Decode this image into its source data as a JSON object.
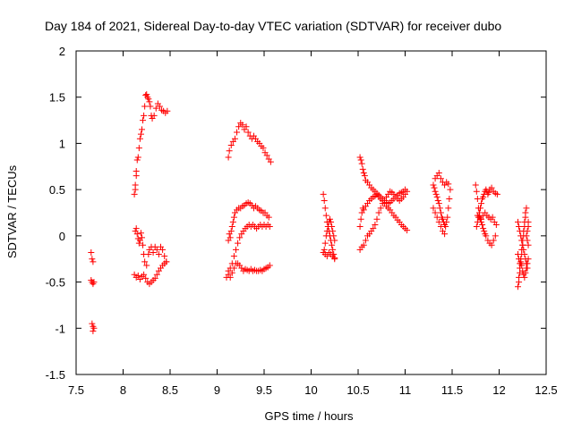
{
  "chart_data": {
    "type": "scatter",
    "title": "Day 184 of 2021, Sidereal Day-to-day VTEC variation (SDTVAR) for receiver dubo",
    "xlabel": "GPS time / hours",
    "ylabel": "SDTVAR / TECUs",
    "xlim": [
      7.5,
      12.5
    ],
    "ylim": [
      -1.5,
      2
    ],
    "xticks": [
      "7.5",
      "8",
      "8.5",
      "9",
      "9.5",
      "10",
      "10.5",
      "11",
      "11.5",
      "12",
      "12.5"
    ],
    "yticks": [
      "-1.5",
      "-1",
      "-0.5",
      "0",
      "0.5",
      "1",
      "1.5",
      "2"
    ],
    "grid": false,
    "marker": "+",
    "color": "#ff0000",
    "points": [
      [
        7.66,
        -0.18
      ],
      [
        7.67,
        -0.25
      ],
      [
        7.68,
        -0.28
      ],
      [
        7.66,
        -0.48
      ],
      [
        7.67,
        -0.5
      ],
      [
        7.68,
        -0.52
      ],
      [
        7.69,
        -0.5
      ],
      [
        7.67,
        -0.95
      ],
      [
        7.68,
        -0.98
      ],
      [
        7.69,
        -1.0
      ],
      [
        7.68,
        -1.03
      ],
      [
        8.12,
        0.45
      ],
      [
        8.13,
        0.5
      ],
      [
        8.13,
        0.55
      ],
      [
        8.14,
        0.65
      ],
      [
        8.14,
        0.7
      ],
      [
        8.15,
        0.82
      ],
      [
        8.16,
        0.85
      ],
      [
        8.17,
        0.95
      ],
      [
        8.18,
        1.05
      ],
      [
        8.19,
        1.1
      ],
      [
        8.2,
        1.15
      ],
      [
        8.21,
        1.25
      ],
      [
        8.22,
        1.3
      ],
      [
        8.23,
        1.4
      ],
      [
        8.24,
        1.52
      ],
      [
        8.25,
        1.53
      ],
      [
        8.26,
        1.5
      ],
      [
        8.27,
        1.48
      ],
      [
        8.28,
        1.45
      ],
      [
        8.29,
        1.4
      ],
      [
        8.3,
        1.3
      ],
      [
        8.31,
        1.27
      ],
      [
        8.33,
        1.3
      ],
      [
        8.35,
        1.38
      ],
      [
        8.37,
        1.43
      ],
      [
        8.39,
        1.4
      ],
      [
        8.41,
        1.36
      ],
      [
        8.43,
        1.35
      ],
      [
        8.45,
        1.33
      ],
      [
        8.47,
        1.35
      ],
      [
        8.13,
        0.05
      ],
      [
        8.14,
        0.08
      ],
      [
        8.15,
        0.02
      ],
      [
        8.16,
        -0.03
      ],
      [
        8.17,
        -0.08
      ],
      [
        8.18,
        -0.05
      ],
      [
        8.19,
        0.03
      ],
      [
        8.2,
        -0.02
      ],
      [
        8.21,
        -0.1
      ],
      [
        8.22,
        -0.2
      ],
      [
        8.23,
        -0.28
      ],
      [
        8.25,
        -0.32
      ],
      [
        8.27,
        -0.2
      ],
      [
        8.28,
        -0.15
      ],
      [
        8.3,
        -0.12
      ],
      [
        8.32,
        -0.18
      ],
      [
        8.34,
        -0.12
      ],
      [
        8.36,
        -0.15
      ],
      [
        8.38,
        -0.2
      ],
      [
        8.4,
        -0.12
      ],
      [
        8.42,
        -0.15
      ],
      [
        8.44,
        -0.22
      ],
      [
        8.46,
        -0.28
      ],
      [
        8.12,
        -0.42
      ],
      [
        8.14,
        -0.45
      ],
      [
        8.16,
        -0.43
      ],
      [
        8.18,
        -0.47
      ],
      [
        8.2,
        -0.44
      ],
      [
        8.22,
        -0.42
      ],
      [
        8.24,
        -0.46
      ],
      [
        8.26,
        -0.5
      ],
      [
        8.28,
        -0.52
      ],
      [
        8.3,
        -0.5
      ],
      [
        8.32,
        -0.48
      ],
      [
        8.34,
        -0.46
      ],
      [
        8.36,
        -0.42
      ],
      [
        8.38,
        -0.38
      ],
      [
        8.4,
        -0.35
      ],
      [
        8.42,
        -0.32
      ],
      [
        8.44,
        -0.3
      ],
      [
        8.46,
        -0.28
      ],
      [
        9.12,
        0.85
      ],
      [
        9.13,
        0.92
      ],
      [
        9.15,
        0.98
      ],
      [
        9.17,
        1.02
      ],
      [
        9.19,
        1.05
      ],
      [
        9.21,
        1.12
      ],
      [
        9.23,
        1.18
      ],
      [
        9.25,
        1.22
      ],
      [
        9.27,
        1.2
      ],
      [
        9.29,
        1.15
      ],
      [
        9.31,
        1.18
      ],
      [
        9.33,
        1.12
      ],
      [
        9.35,
        1.08
      ],
      [
        9.37,
        1.05
      ],
      [
        9.39,
        1.08
      ],
      [
        9.41,
        1.05
      ],
      [
        9.43,
        1.02
      ],
      [
        9.45,
        1.0
      ],
      [
        9.47,
        0.97
      ],
      [
        9.49,
        0.95
      ],
      [
        9.51,
        0.9
      ],
      [
        9.53,
        0.87
      ],
      [
        9.55,
        0.83
      ],
      [
        9.57,
        0.8
      ],
      [
        9.12,
        -0.05
      ],
      [
        9.13,
        0.02
      ],
      [
        9.14,
        -0.02
      ],
      [
        9.15,
        0.05
      ],
      [
        9.16,
        0.1
      ],
      [
        9.17,
        0.15
      ],
      [
        9.18,
        0.2
      ],
      [
        9.19,
        0.25
      ],
      [
        9.21,
        0.28
      ],
      [
        9.23,
        0.3
      ],
      [
        9.25,
        0.3
      ],
      [
        9.27,
        0.32
      ],
      [
        9.29,
        0.33
      ],
      [
        9.31,
        0.35
      ],
      [
        9.33,
        0.36
      ],
      [
        9.35,
        0.35
      ],
      [
        9.37,
        0.33
      ],
      [
        9.39,
        0.3
      ],
      [
        9.41,
        0.32
      ],
      [
        9.43,
        0.3
      ],
      [
        9.45,
        0.28
      ],
      [
        9.47,
        0.27
      ],
      [
        9.49,
        0.25
      ],
      [
        9.51,
        0.25
      ],
      [
        9.53,
        0.22
      ],
      [
        9.55,
        0.2
      ],
      [
        9.12,
        -0.38
      ],
      [
        9.14,
        -0.35
      ],
      [
        9.16,
        -0.3
      ],
      [
        9.18,
        -0.22
      ],
      [
        9.2,
        -0.15
      ],
      [
        9.22,
        -0.08
      ],
      [
        9.24,
        -0.02
      ],
      [
        9.26,
        0.02
      ],
      [
        9.28,
        0.05
      ],
      [
        9.3,
        0.08
      ],
      [
        9.32,
        0.1
      ],
      [
        9.34,
        0.12
      ],
      [
        9.36,
        0.1
      ],
      [
        9.38,
        0.12
      ],
      [
        9.4,
        0.1
      ],
      [
        9.42,
        0.08
      ],
      [
        9.44,
        0.1
      ],
      [
        9.46,
        0.12
      ],
      [
        9.48,
        0.1
      ],
      [
        9.5,
        0.12
      ],
      [
        9.52,
        0.1
      ],
      [
        9.54,
        0.12
      ],
      [
        9.56,
        0.1
      ],
      [
        9.1,
        -0.45
      ],
      [
        9.12,
        -0.42
      ],
      [
        9.14,
        -0.45
      ],
      [
        9.16,
        -0.4
      ],
      [
        9.18,
        -0.35
      ],
      [
        9.2,
        -0.3
      ],
      [
        9.22,
        -0.3
      ],
      [
        9.24,
        -0.32
      ],
      [
        9.26,
        -0.35
      ],
      [
        9.28,
        -0.38
      ],
      [
        9.3,
        -0.36
      ],
      [
        9.32,
        -0.37
      ],
      [
        9.34,
        -0.38
      ],
      [
        9.36,
        -0.36
      ],
      [
        9.38,
        -0.38
      ],
      [
        9.4,
        -0.37
      ],
      [
        9.42,
        -0.38
      ],
      [
        9.44,
        -0.38
      ],
      [
        9.46,
        -0.37
      ],
      [
        9.48,
        -0.38
      ],
      [
        9.5,
        -0.36
      ],
      [
        9.52,
        -0.35
      ],
      [
        9.54,
        -0.34
      ],
      [
        9.56,
        -0.32
      ],
      [
        10.13,
        0.45
      ],
      [
        10.14,
        0.38
      ],
      [
        10.15,
        0.3
      ],
      [
        10.16,
        0.22
      ],
      [
        10.17,
        0.15
      ],
      [
        10.18,
        0.1
      ],
      [
        10.19,
        0.05
      ],
      [
        10.2,
        0.0
      ],
      [
        10.21,
        -0.05
      ],
      [
        10.22,
        -0.1
      ],
      [
        10.23,
        -0.15
      ],
      [
        10.24,
        -0.2
      ],
      [
        10.25,
        -0.25
      ],
      [
        10.14,
        -0.15
      ],
      [
        10.15,
        -0.08
      ],
      [
        10.16,
        0.0
      ],
      [
        10.17,
        0.05
      ],
      [
        10.18,
        0.1
      ],
      [
        10.19,
        0.15
      ],
      [
        10.2,
        0.18
      ],
      [
        10.21,
        0.15
      ],
      [
        10.22,
        0.1
      ],
      [
        10.23,
        0.05
      ],
      [
        10.24,
        0.0
      ],
      [
        10.25,
        -0.05
      ],
      [
        10.13,
        -0.18
      ],
      [
        10.15,
        -0.2
      ],
      [
        10.17,
        -0.22
      ],
      [
        10.19,
        -0.18
      ],
      [
        10.21,
        -0.2
      ],
      [
        10.23,
        -0.22
      ],
      [
        10.25,
        -0.24
      ],
      [
        10.52,
        0.85
      ],
      [
        10.53,
        0.82
      ],
      [
        10.54,
        0.78
      ],
      [
        10.55,
        0.72
      ],
      [
        10.56,
        0.68
      ],
      [
        10.57,
        0.65
      ],
      [
        10.58,
        0.6
      ],
      [
        10.6,
        0.58
      ],
      [
        10.62,
        0.55
      ],
      [
        10.64,
        0.52
      ],
      [
        10.66,
        0.5
      ],
      [
        10.68,
        0.48
      ],
      [
        10.7,
        0.46
      ],
      [
        10.72,
        0.44
      ],
      [
        10.74,
        0.42
      ],
      [
        10.76,
        0.4
      ],
      [
        10.78,
        0.38
      ],
      [
        10.8,
        0.36
      ],
      [
        10.82,
        0.35
      ],
      [
        10.84,
        0.36
      ],
      [
        10.86,
        0.38
      ],
      [
        10.88,
        0.4
      ],
      [
        10.9,
        0.42
      ],
      [
        10.92,
        0.44
      ],
      [
        10.94,
        0.46
      ],
      [
        10.96,
        0.47
      ],
      [
        10.98,
        0.48
      ],
      [
        11.0,
        0.5
      ],
      [
        10.52,
        0.1
      ],
      [
        10.53,
        0.18
      ],
      [
        10.54,
        0.25
      ],
      [
        10.55,
        0.3
      ],
      [
        10.56,
        0.28
      ],
      [
        10.58,
        0.32
      ],
      [
        10.6,
        0.35
      ],
      [
        10.62,
        0.38
      ],
      [
        10.64,
        0.4
      ],
      [
        10.66,
        0.42
      ],
      [
        10.68,
        0.43
      ],
      [
        10.7,
        0.45
      ],
      [
        10.72,
        0.42
      ],
      [
        10.74,
        0.4
      ],
      [
        10.76,
        0.38
      ],
      [
        10.78,
        0.35
      ],
      [
        10.8,
        0.32
      ],
      [
        10.82,
        0.3
      ],
      [
        10.84,
        0.28
      ],
      [
        10.86,
        0.25
      ],
      [
        10.88,
        0.22
      ],
      [
        10.9,
        0.2
      ],
      [
        10.92,
        0.17
      ],
      [
        10.94,
        0.15
      ],
      [
        10.96,
        0.12
      ],
      [
        10.98,
        0.1
      ],
      [
        11.0,
        0.08
      ],
      [
        11.02,
        0.06
      ],
      [
        10.52,
        -0.15
      ],
      [
        10.54,
        -0.12
      ],
      [
        10.56,
        -0.1
      ],
      [
        10.58,
        -0.05
      ],
      [
        10.6,
        0.0
      ],
      [
        10.62,
        0.02
      ],
      [
        10.64,
        0.05
      ],
      [
        10.66,
        0.08
      ],
      [
        10.68,
        0.12
      ],
      [
        10.7,
        0.18
      ],
      [
        10.72,
        0.25
      ],
      [
        10.74,
        0.3
      ],
      [
        10.76,
        0.35
      ],
      [
        10.78,
        0.38
      ],
      [
        10.8,
        0.42
      ],
      [
        10.82,
        0.45
      ],
      [
        10.84,
        0.48
      ],
      [
        10.86,
        0.47
      ],
      [
        10.88,
        0.45
      ],
      [
        10.9,
        0.42
      ],
      [
        10.92,
        0.4
      ],
      [
        10.94,
        0.38
      ],
      [
        10.96,
        0.4
      ],
      [
        10.98,
        0.42
      ],
      [
        11.0,
        0.45
      ],
      [
        11.02,
        0.48
      ],
      [
        11.3,
        0.55
      ],
      [
        11.31,
        0.52
      ],
      [
        11.32,
        0.48
      ],
      [
        11.33,
        0.45
      ],
      [
        11.34,
        0.42
      ],
      [
        11.35,
        0.38
      ],
      [
        11.36,
        0.35
      ],
      [
        11.37,
        0.3
      ],
      [
        11.38,
        0.25
      ],
      [
        11.39,
        0.2
      ],
      [
        11.4,
        0.18
      ],
      [
        11.41,
        0.15
      ],
      [
        11.42,
        0.12
      ],
      [
        11.43,
        0.1
      ],
      [
        11.32,
        0.62
      ],
      [
        11.34,
        0.65
      ],
      [
        11.36,
        0.68
      ],
      [
        11.38,
        0.62
      ],
      [
        11.4,
        0.58
      ],
      [
        11.42,
        0.55
      ],
      [
        11.44,
        0.58
      ],
      [
        11.46,
        0.56
      ],
      [
        11.3,
        0.3
      ],
      [
        11.32,
        0.25
      ],
      [
        11.34,
        0.2
      ],
      [
        11.36,
        0.15
      ],
      [
        11.38,
        0.1
      ],
      [
        11.4,
        0.05
      ],
      [
        11.42,
        0.02
      ],
      [
        11.44,
        0.15
      ],
      [
        11.45,
        0.2
      ],
      [
        11.46,
        0.3
      ],
      [
        11.47,
        0.4
      ],
      [
        11.48,
        0.5
      ],
      [
        11.75,
        0.55
      ],
      [
        11.76,
        0.48
      ],
      [
        11.77,
        0.4
      ],
      [
        11.78,
        0.3
      ],
      [
        11.79,
        0.22
      ],
      [
        11.8,
        0.18
      ],
      [
        11.81,
        0.15
      ],
      [
        11.82,
        0.12
      ],
      [
        11.83,
        0.08
      ],
      [
        11.84,
        0.05
      ],
      [
        11.85,
        0.02
      ],
      [
        11.86,
        0.0
      ],
      [
        11.88,
        -0.05
      ],
      [
        11.9,
        -0.08
      ],
      [
        11.92,
        -0.1
      ],
      [
        11.94,
        -0.05
      ],
      [
        11.96,
        0.0
      ],
      [
        11.76,
        0.1
      ],
      [
        11.77,
        0.15
      ],
      [
        11.78,
        0.2
      ],
      [
        11.79,
        0.25
      ],
      [
        11.8,
        0.3
      ],
      [
        11.81,
        0.35
      ],
      [
        11.82,
        0.4
      ],
      [
        11.83,
        0.42
      ],
      [
        11.84,
        0.45
      ],
      [
        11.85,
        0.48
      ],
      [
        11.86,
        0.5
      ],
      [
        11.87,
        0.48
      ],
      [
        11.88,
        0.45
      ],
      [
        11.89,
        0.47
      ],
      [
        11.9,
        0.5
      ],
      [
        11.92,
        0.52
      ],
      [
        11.94,
        0.48
      ],
      [
        11.96,
        0.46
      ],
      [
        11.98,
        0.45
      ],
      [
        11.77,
        0.22
      ],
      [
        11.79,
        0.2
      ],
      [
        11.81,
        0.18
      ],
      [
        11.83,
        0.22
      ],
      [
        11.85,
        0.25
      ],
      [
        11.87,
        0.22
      ],
      [
        11.89,
        0.2
      ],
      [
        11.91,
        0.18
      ],
      [
        11.93,
        0.2
      ],
      [
        11.95,
        0.15
      ],
      [
        11.97,
        0.12
      ],
      [
        12.2,
        -0.55
      ],
      [
        12.21,
        -0.5
      ],
      [
        12.21,
        -0.45
      ],
      [
        12.22,
        -0.4
      ],
      [
        12.22,
        -0.35
      ],
      [
        12.23,
        -0.3
      ],
      [
        12.23,
        -0.25
      ],
      [
        12.24,
        -0.2
      ],
      [
        12.24,
        -0.15
      ],
      [
        12.25,
        -0.1
      ],
      [
        12.25,
        -0.05
      ],
      [
        12.26,
        0.0
      ],
      [
        12.26,
        0.05
      ],
      [
        12.27,
        0.1
      ],
      [
        12.27,
        0.15
      ],
      [
        12.28,
        0.2
      ],
      [
        12.28,
        0.25
      ],
      [
        12.29,
        0.3
      ],
      [
        12.2,
        0.15
      ],
      [
        12.21,
        0.1
      ],
      [
        12.22,
        0.05
      ],
      [
        12.23,
        0.0
      ],
      [
        12.24,
        -0.05
      ],
      [
        12.25,
        -0.1
      ],
      [
        12.26,
        -0.15
      ],
      [
        12.27,
        -0.2
      ],
      [
        12.28,
        -0.25
      ],
      [
        12.29,
        -0.3
      ],
      [
        12.3,
        -0.35
      ],
      [
        12.2,
        -0.2
      ],
      [
        12.21,
        -0.25
      ],
      [
        12.22,
        -0.3
      ],
      [
        12.23,
        -0.28
      ],
      [
        12.24,
        -0.32
      ],
      [
        12.25,
        -0.38
      ],
      [
        12.26,
        -0.42
      ],
      [
        12.27,
        -0.45
      ],
      [
        12.28,
        -0.4
      ],
      [
        12.29,
        -0.35
      ],
      [
        12.3,
        -0.3
      ],
      [
        12.31,
        -0.25
      ],
      [
        12.29,
        0.0
      ],
      [
        12.3,
        0.05
      ],
      [
        12.31,
        0.1
      ],
      [
        12.31,
        0.15
      ],
      [
        12.3,
        -0.05
      ],
      [
        12.31,
        -0.1
      ]
    ]
  }
}
